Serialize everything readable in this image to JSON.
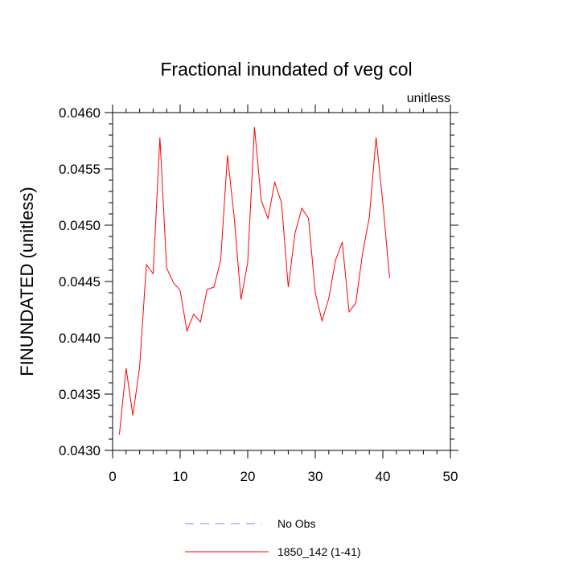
{
  "chart_data": {
    "type": "line",
    "title": "Fractional inundated of veg col",
    "units_label": "unitless",
    "xlabel": "",
    "ylabel": "FINUNDATED  (unitless)",
    "xlim": [
      0,
      50
    ],
    "ylim": [
      0.043,
      0.046
    ],
    "x_ticks": [
      0,
      10,
      20,
      30,
      40,
      50
    ],
    "x_tick_labels": [
      "0",
      "10",
      "20",
      "30",
      "40",
      "50"
    ],
    "y_ticks": [
      0.043,
      0.0435,
      0.044,
      0.0445,
      0.045,
      0.0455,
      0.046
    ],
    "y_tick_labels": [
      "0.0430",
      "0.0435",
      "0.0440",
      "0.0445",
      "0.0450",
      "0.0455",
      "0.0460"
    ],
    "grid": false,
    "legend_position": "bottom",
    "series": [
      {
        "name": "1850_142 (1-41)",
        "color": "#ff0000",
        "dash": "solid",
        "x": [
          1,
          2,
          3,
          4,
          5,
          6,
          7,
          8,
          9,
          10,
          11,
          12,
          13,
          14,
          15,
          16,
          17,
          18,
          19,
          20,
          21,
          22,
          23,
          24,
          25,
          26,
          27,
          28,
          29,
          30,
          31,
          32,
          33,
          34,
          35,
          36,
          37,
          38,
          39,
          40,
          41
        ],
        "y": [
          0.04314,
          0.04373,
          0.04331,
          0.04374,
          0.04465,
          0.04457,
          0.04578,
          0.04462,
          0.04449,
          0.04442,
          0.04406,
          0.04421,
          0.04414,
          0.04443,
          0.04445,
          0.04469,
          0.04562,
          0.04507,
          0.04434,
          0.04467,
          0.04587,
          0.04522,
          0.04506,
          0.04538,
          0.0452,
          0.04445,
          0.04493,
          0.04515,
          0.04506,
          0.0444,
          0.04415,
          0.04435,
          0.04469,
          0.04485,
          0.04423,
          0.04431,
          0.04475,
          0.04507,
          0.04578,
          0.0452,
          0.04453
        ]
      }
    ],
    "legend": [
      {
        "name": "No Obs",
        "color": "#8080ff",
        "dash": "dashed"
      },
      {
        "name": "1850_142 (1-41)",
        "color": "#ff0000",
        "dash": "solid"
      }
    ]
  }
}
